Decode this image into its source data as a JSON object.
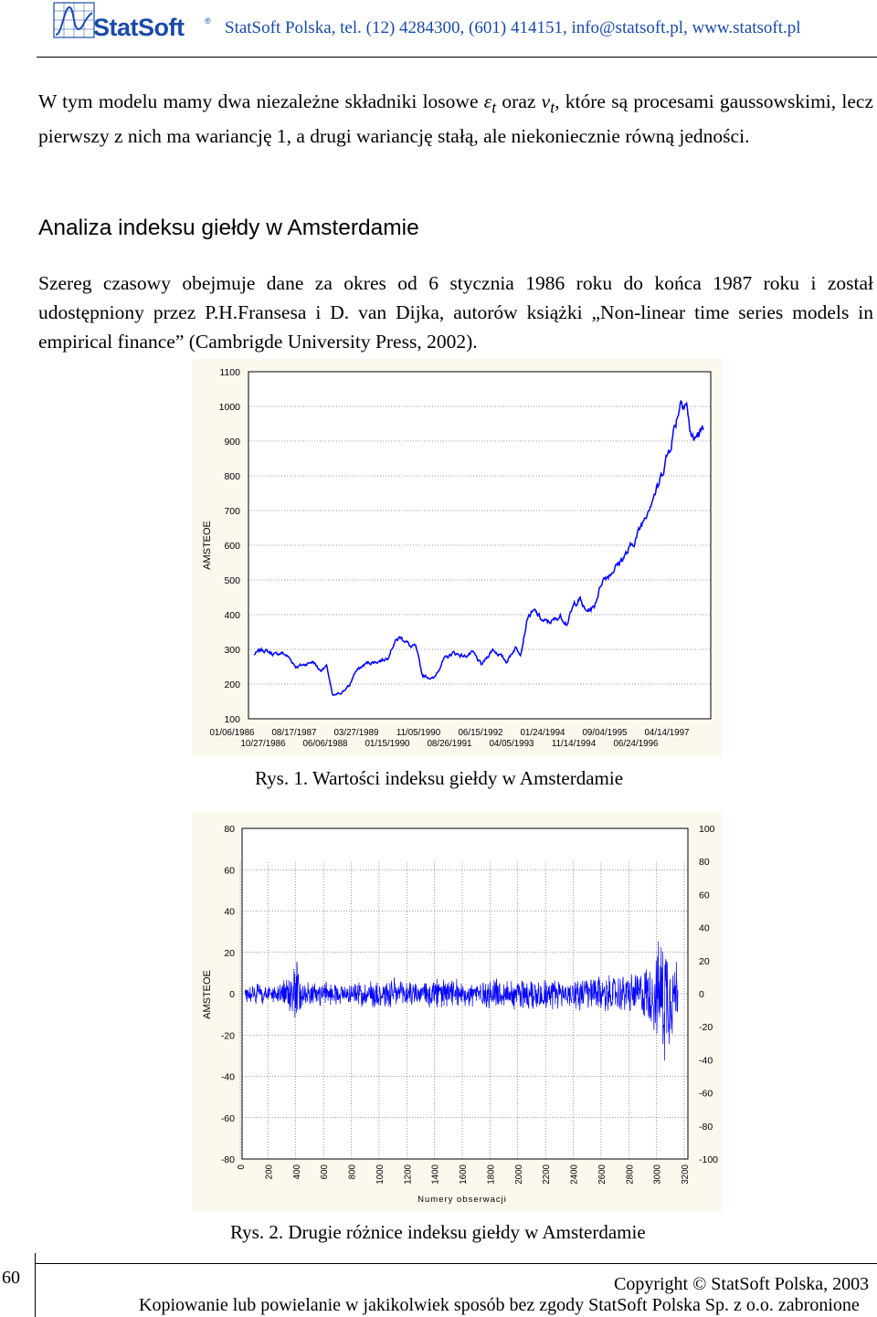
{
  "header": {
    "logo_text": "StatSoft",
    "registered_mark": "®",
    "contact": "StatSoft Polska, tel. (12) 4284300, (601) 414151, info@statsoft.pl, www.statsoft.pl"
  },
  "para1": {
    "t1": "W tym modelu mamy dwa niezależne składniki losowe ",
    "eps": "ε",
    "sub1": "t",
    "t2": " oraz ",
    "nu": "v",
    "sub2": "t",
    "t3": ", które są procesami gaussowskimi, lecz pierwszy z nich ma wariancję 1, a drugi wariancję stałą, ale niekoniecznie równą jedności."
  },
  "section_title": "Analiza indeksu giełdy w Amsterdamie",
  "para2": "Szereg czasowy obejmuje dane za okres od 6 stycznia 1986 roku do końca 1987 roku i został udostępniony przez P.H.Fransesa i D. van Dijka, autorów książki „Non-linear time series models in empirical finance” (Cambrigde University Press, 2002).",
  "captions": {
    "fig1": "Rys. 1. Wartości indeksu giełdy w Amsterdamie",
    "fig2": "Rys. 2. Drugie różnice indeksu giełdy w Amsterdamie"
  },
  "chart_data": [
    {
      "type": "line",
      "title": "",
      "ylabel": "AMSTEOE",
      "xlabel": "",
      "ylim": [
        100,
        1100
      ],
      "y_ticks": [
        "1100",
        "1000",
        "900",
        "800",
        "700",
        "600",
        "500",
        "400",
        "300",
        "200",
        "100"
      ],
      "x_ticks_row1": [
        "01/06/1986",
        "08/17/1987",
        "03/27/1989",
        "11/05/1990",
        "06/15/1992",
        "01/24/1994",
        "09/04/1995",
        "04/14/1997"
      ],
      "x_ticks_row2": [
        "10/27/1986",
        "06/06/1988",
        "01/15/1990",
        "08/26/1991",
        "04/05/1993",
        "11/14/1994",
        "06/24/1996"
      ],
      "n_observations": 3200,
      "series": [
        {
          "color": "#0000ff",
          "x": [
            0,
            60,
            150,
            200,
            240,
            300,
            350,
            420,
            470,
            520,
            560,
            620,
            680,
            720,
            800,
            880,
            950,
            1000,
            1040,
            1080,
            1120,
            1150,
            1200,
            1280,
            1350,
            1420,
            1500,
            1560,
            1620,
            1700,
            1760,
            1800,
            1860,
            1900,
            1950,
            2000,
            2060,
            2120,
            2180,
            2230,
            2280,
            2320,
            2360,
            2420,
            2480,
            2540,
            2600,
            2660,
            2720,
            2780,
            2840,
            2880,
            2920,
            2960,
            3000,
            3040,
            3080,
            3100,
            3130,
            3160,
            3200
          ],
          "values": [
            285,
            300,
            285,
            290,
            280,
            250,
            255,
            265,
            240,
            250,
            165,
            175,
            195,
            235,
            260,
            265,
            275,
            320,
            335,
            325,
            305,
            310,
            225,
            215,
            270,
            290,
            280,
            290,
            255,
            300,
            280,
            265,
            305,
            290,
            395,
            410,
            380,
            380,
            395,
            375,
            430,
            445,
            410,
            420,
            500,
            520,
            550,
            580,
            620,
            680,
            740,
            770,
            830,
            880,
            950,
            1020,
            1010,
            940,
            900,
            920,
            930
          ]
        }
      ]
    },
    {
      "type": "line",
      "title": "",
      "ylabel": "AMSTEOE",
      "xlabel": "Numery obserwacji",
      "ylim": [
        -80,
        80
      ],
      "y_ticks_left": [
        "80",
        "60",
        "40",
        "20",
        "0",
        "-20",
        "-40",
        "-60",
        "-80"
      ],
      "y_ticks_right": [
        "100",
        "80",
        "60",
        "40",
        "20",
        "0",
        "-20",
        "-40",
        "-60",
        "-80",
        "-100"
      ],
      "x_ticks": [
        "0",
        "200",
        "400",
        "600",
        "800",
        "1000",
        "1200",
        "1400",
        "1600",
        "1800",
        "2000",
        "2200",
        "2400",
        "2600",
        "2800",
        "3000",
        "3200"
      ],
      "series": [
        {
          "color": "#0000ff",
          "x": [
            0,
            100,
            200,
            300,
            360,
            380,
            400,
            440,
            500,
            600,
            700,
            800,
            900,
            1000,
            1100,
            1200,
            1300,
            1400,
            1500,
            1600,
            1700,
            1800,
            1900,
            2000,
            2100,
            2200,
            2300,
            2400,
            2500,
            2600,
            2700,
            2800,
            2900,
            2950,
            3000,
            3050,
            3100,
            3150,
            3200
          ],
          "amplitude": [
            4,
            6,
            5,
            7,
            12,
            24,
            10,
            7,
            6,
            7,
            6,
            6,
            8,
            9,
            8,
            8,
            7,
            9,
            8,
            7,
            8,
            9,
            8,
            9,
            10,
            9,
            9,
            8,
            9,
            11,
            10,
            11,
            12,
            15,
            18,
            26,
            40,
            26,
            20
          ]
        }
      ]
    }
  ]
}
